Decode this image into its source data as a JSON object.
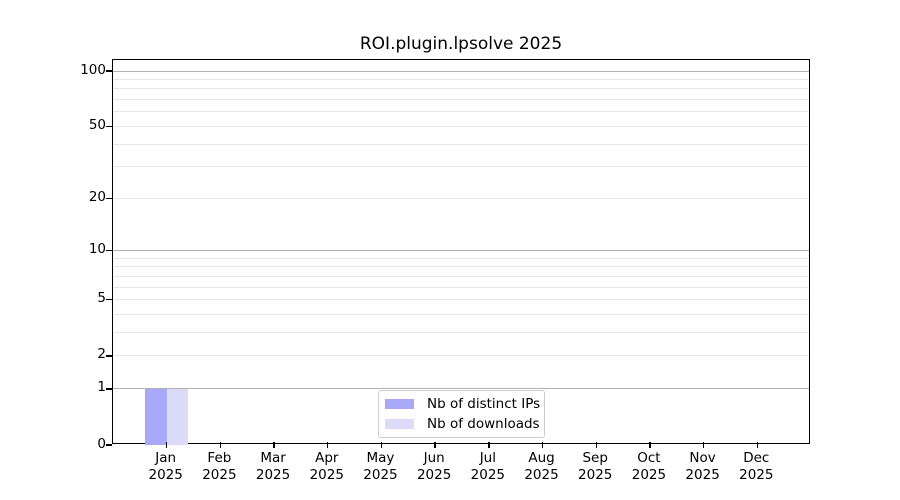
{
  "title": "ROI.plugin.lpsolve 2025",
  "chart_data": {
    "type": "bar",
    "title": "ROI.plugin.lpsolve 2025",
    "xlabel": "",
    "ylabel": "",
    "categories": [
      "Jan",
      "Feb",
      "Mar",
      "Apr",
      "May",
      "Jun",
      "Jul",
      "Aug",
      "Sep",
      "Oct",
      "Nov",
      "Dec"
    ],
    "year_label": "2025",
    "series": [
      {
        "name": "Nb of distinct IPs",
        "color": "#a9a9f7",
        "values": [
          1,
          0,
          0,
          0,
          0,
          0,
          0,
          0,
          0,
          0,
          0,
          0
        ]
      },
      {
        "name": "Nb of downloads",
        "color": "#dcdcf9",
        "values": [
          1,
          0,
          0,
          0,
          0,
          0,
          0,
          0,
          0,
          0,
          0,
          0
        ]
      }
    ],
    "yscale": "log1p",
    "ylim": [
      0,
      100
    ],
    "y_tick_values": [
      0,
      1,
      2,
      5,
      10,
      20,
      50,
      100
    ],
    "y_tick_labels": [
      "0",
      "1",
      "2",
      "5",
      "10",
      "20",
      "50",
      "100"
    ],
    "major_grid_values": [
      1,
      10,
      100
    ],
    "minor_grid_values": [
      2,
      3,
      4,
      5,
      6,
      7,
      8,
      9,
      20,
      30,
      40,
      50,
      60,
      70,
      80,
      90
    ],
    "grid": true,
    "legend_position": "lower center",
    "colors": {
      "major_grid": "#b2b2b2",
      "minor_grid": "#e8e8e8",
      "axis": "#000000",
      "legend_border": "#cccccc",
      "text": "#000000"
    }
  }
}
